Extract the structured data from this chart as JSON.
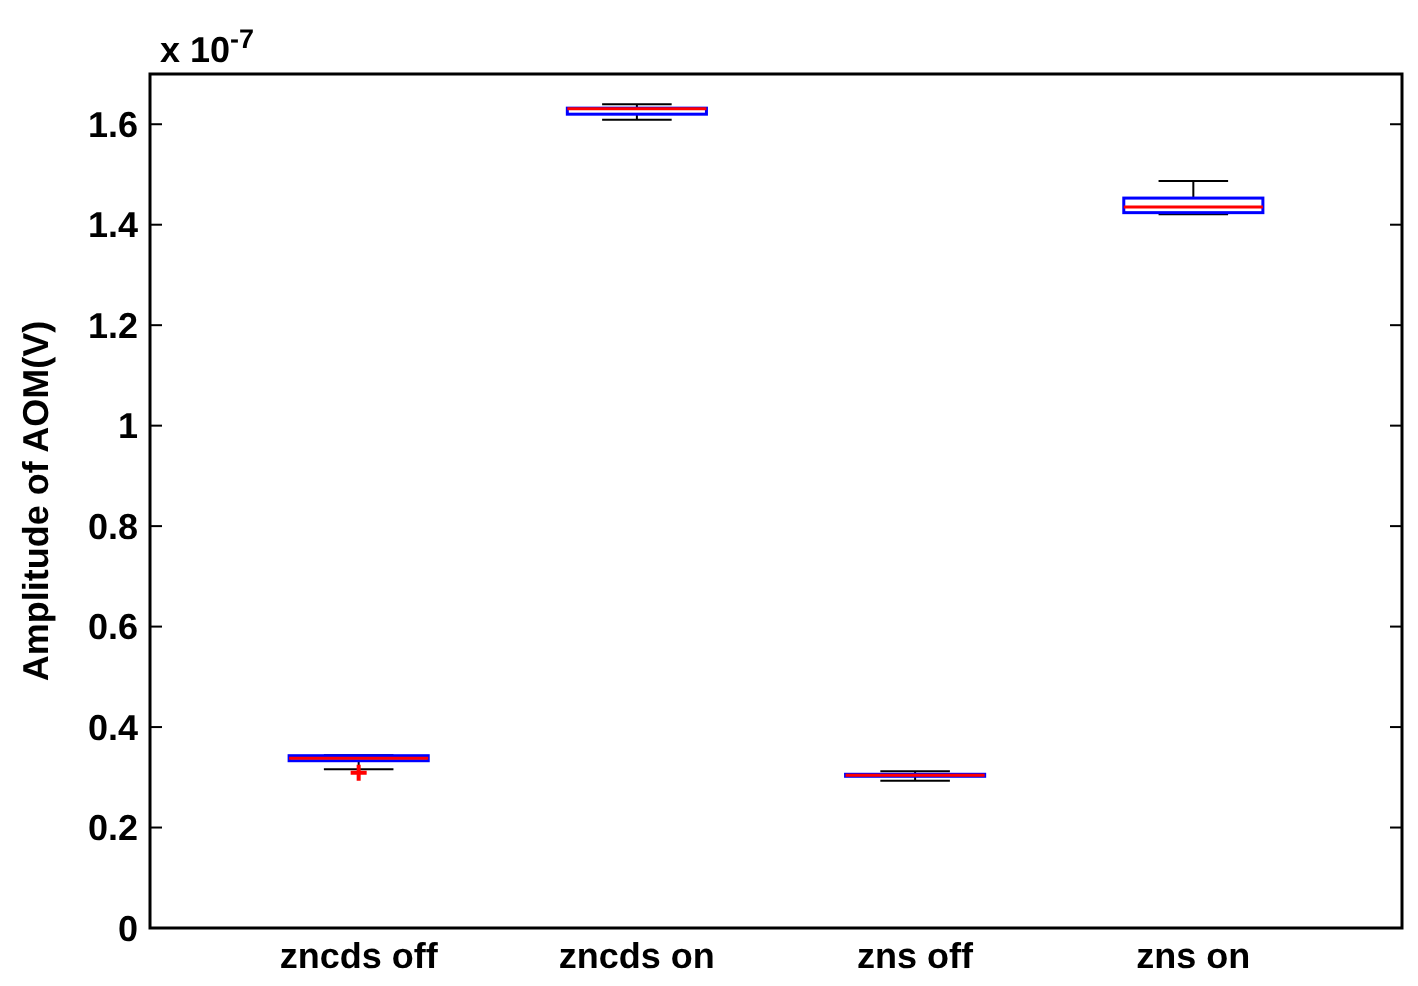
{
  "chart_data": {
    "type": "box",
    "ylabel": "Amplitude of AOM(V)",
    "annotations": [
      "x 10$^{-7}$"
    ],
    "categories": [
      "zncds off",
      "zncds on",
      "zns off",
      "zns on"
    ],
    "ylim": [
      0,
      1.7
    ],
    "yticks": [
      0,
      0.2,
      0.4,
      0.6,
      0.8,
      1,
      1.2,
      1.4,
      1.6
    ],
    "color": "#0000ff",
    "marker": "cross",
    "boxes": [
      {
        "low": 0.316,
        "q1": 0.333,
        "median": 0.338,
        "q3": 0.343,
        "high": 0.344,
        "outliers": [
          0.309
        ]
      },
      {
        "low": 1.609,
        "q1": 1.62,
        "median": 1.631,
        "q3": 1.632,
        "high": 1.64
      },
      {
        "low": 0.293,
        "q1": 0.302,
        "median": 0.304,
        "q3": 0.306,
        "high": 0.312
      },
      {
        "low": 1.421,
        "q1": 1.424,
        "median": 1.435,
        "q3": 1.453,
        "high": 1.487
      }
    ],
    "grid": false
  }
}
